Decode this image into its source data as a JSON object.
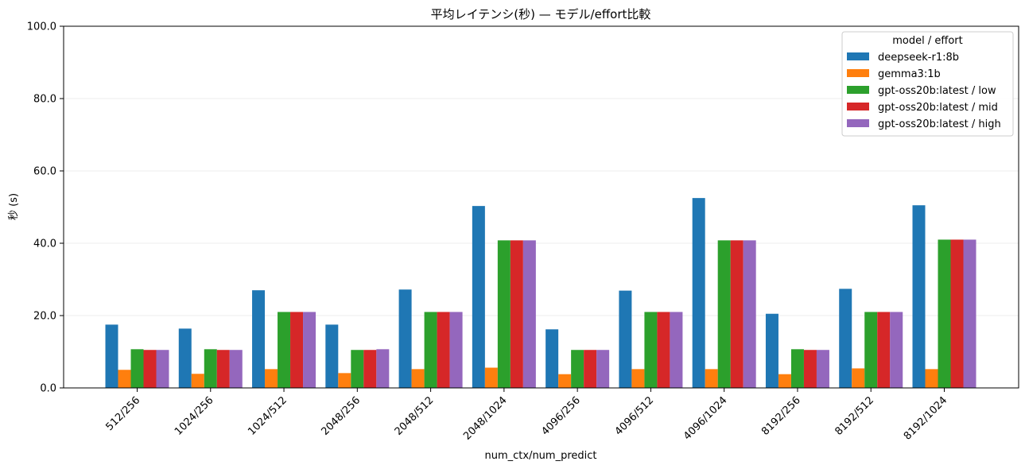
{
  "chart_data": {
    "type": "bar",
    "title": "平均レイテンシ(秒) — モデル/effort比較",
    "xlabel": "num_ctx/num_predict",
    "ylabel": "秒 (s)",
    "ylim": [
      0,
      100
    ],
    "yticks": [
      0,
      20,
      40,
      60,
      80,
      100
    ],
    "ytick_labels": [
      "0.0",
      "20.0",
      "40.0",
      "60.0",
      "80.0",
      "100.0"
    ],
    "grid": true,
    "legend_title": "model / effort",
    "legend_position": "top-right",
    "categories": [
      "512/256",
      "1024/256",
      "1024/512",
      "2048/256",
      "2048/512",
      "2048/1024",
      "4096/256",
      "4096/512",
      "4096/1024",
      "8192/256",
      "8192/512",
      "8192/1024"
    ],
    "series": [
      {
        "name": "deepseek-r1:8b",
        "color": "#1f77b4",
        "values": [
          17.5,
          16.4,
          27.0,
          17.5,
          27.2,
          50.3,
          16.2,
          26.9,
          52.5,
          20.5,
          27.4,
          50.5
        ]
      },
      {
        "name": "gemma3:1b",
        "color": "#ff7f0e",
        "values": [
          5.0,
          3.9,
          5.2,
          4.1,
          5.2,
          5.6,
          3.8,
          5.2,
          5.2,
          3.8,
          5.4,
          5.2
        ]
      },
      {
        "name": "gpt-oss20b:latest / low",
        "color": "#2ca02c",
        "values": [
          10.7,
          10.7,
          21.0,
          10.5,
          21.0,
          40.8,
          10.5,
          21.0,
          40.8,
          10.7,
          21.0,
          41.0
        ]
      },
      {
        "name": "gpt-oss20b:latest / mid",
        "color": "#d62728",
        "values": [
          10.5,
          10.5,
          21.0,
          10.5,
          21.0,
          40.8,
          10.5,
          21.0,
          40.8,
          10.5,
          21.0,
          41.0
        ]
      },
      {
        "name": "gpt-oss20b:latest / high",
        "color": "#9467bd",
        "values": [
          10.5,
          10.5,
          21.0,
          10.7,
          21.0,
          40.8,
          10.5,
          21.0,
          40.8,
          10.5,
          21.0,
          41.0
        ]
      }
    ]
  }
}
